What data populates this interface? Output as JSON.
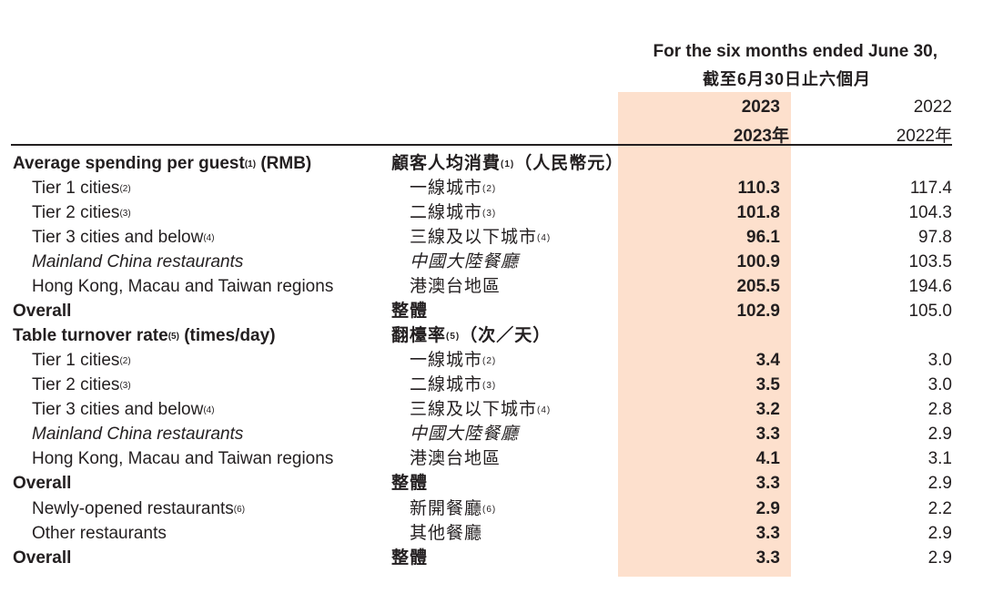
{
  "header": {
    "period_en": "For the six months ended June 30,",
    "period_zh": "截至6月30日止六個月",
    "col_2023_en": "2023",
    "col_2023_zh": "2023年",
    "col_2022_en": "2022",
    "col_2022_zh": "2022年"
  },
  "colors": {
    "highlight": "#fde0cd",
    "text": "#231f20"
  },
  "rows": [
    {
      "en": "Average spending per guest",
      "en_sup": "(1)",
      "en_tail": " (RMB)",
      "zh": "顧客人均消費",
      "zh_sup": "(1)",
      "zh_tail": "（人民幣元）",
      "v2023": "",
      "v2022": ""
    },
    {
      "en": "Tier 1 cities",
      "en_sup": "(2)",
      "en_tail": "",
      "zh": "一線城市",
      "zh_sup": "(2)",
      "zh_tail": "",
      "v2023": "110.3",
      "v2022": "117.4"
    },
    {
      "en": "Tier 2 cities",
      "en_sup": "(3)",
      "en_tail": "",
      "zh": "二線城市",
      "zh_sup": "(3)",
      "zh_tail": "",
      "v2023": "101.8",
      "v2022": "104.3"
    },
    {
      "en": "Tier 3 cities and below",
      "en_sup": "(4)",
      "en_tail": "",
      "zh": "三線及以下城市",
      "zh_sup": "(4)",
      "zh_tail": "",
      "v2023": "96.1",
      "v2022": "97.8"
    },
    {
      "en": "Mainland China restaurants",
      "en_sup": "",
      "en_tail": "",
      "zh": "中國大陸餐廳",
      "zh_sup": "",
      "zh_tail": "",
      "v2023": "100.9",
      "v2022": "103.5"
    },
    {
      "en": "Hong Kong, Macau and Taiwan regions",
      "en_sup": "",
      "en_tail": "",
      "zh": "港澳台地區",
      "zh_sup": "",
      "zh_tail": "",
      "v2023": "205.5",
      "v2022": "194.6"
    },
    {
      "en": "Overall",
      "en_sup": "",
      "en_tail": "",
      "zh": "整體",
      "zh_sup": "",
      "zh_tail": "",
      "v2023": "102.9",
      "v2022": "105.0"
    },
    {
      "en": "Table turnover rate",
      "en_sup": "(5)",
      "en_tail": " (times/day)",
      "zh": "翻檯率",
      "zh_sup": "(5)",
      "zh_tail": "（次／天）",
      "v2023": "",
      "v2022": ""
    },
    {
      "en": "Tier 1 cities",
      "en_sup": "(2)",
      "en_tail": "",
      "zh": "一線城市",
      "zh_sup": "(2)",
      "zh_tail": "",
      "v2023": "3.4",
      "v2022": "3.0"
    },
    {
      "en": "Tier 2 cities",
      "en_sup": "(3)",
      "en_tail": "",
      "zh": "二線城市",
      "zh_sup": "(3)",
      "zh_tail": "",
      "v2023": "3.5",
      "v2022": "3.0"
    },
    {
      "en": "Tier 3 cities and below",
      "en_sup": "(4)",
      "en_tail": "",
      "zh": "三線及以下城市",
      "zh_sup": "(4)",
      "zh_tail": "",
      "v2023": "3.2",
      "v2022": "2.8"
    },
    {
      "en": "Mainland China restaurants",
      "en_sup": "",
      "en_tail": "",
      "zh": "中國大陸餐廳",
      "zh_sup": "",
      "zh_tail": "",
      "v2023": "3.3",
      "v2022": "2.9"
    },
    {
      "en": "Hong Kong, Macau and Taiwan regions",
      "en_sup": "",
      "en_tail": "",
      "zh": "港澳台地區",
      "zh_sup": "",
      "zh_tail": "",
      "v2023": "4.1",
      "v2022": "3.1"
    },
    {
      "en": "Overall",
      "en_sup": "",
      "en_tail": "",
      "zh": "整體",
      "zh_sup": "",
      "zh_tail": "",
      "v2023": "3.3",
      "v2022": "2.9"
    },
    {
      "en": "Newly-opened restaurants",
      "en_sup": "(6)",
      "en_tail": "",
      "zh": "新開餐廳",
      "zh_sup": "(6)",
      "zh_tail": "",
      "v2023": "2.9",
      "v2022": "2.2"
    },
    {
      "en": "Other restaurants",
      "en_sup": "",
      "en_tail": "",
      "zh": "其他餐廳",
      "zh_sup": "",
      "zh_tail": "",
      "v2023": "3.3",
      "v2022": "2.9"
    },
    {
      "en": "Overall",
      "en_sup": "",
      "en_tail": "",
      "zh": "整體",
      "zh_sup": "",
      "zh_tail": "",
      "v2023": "3.3",
      "v2022": "2.9"
    }
  ]
}
